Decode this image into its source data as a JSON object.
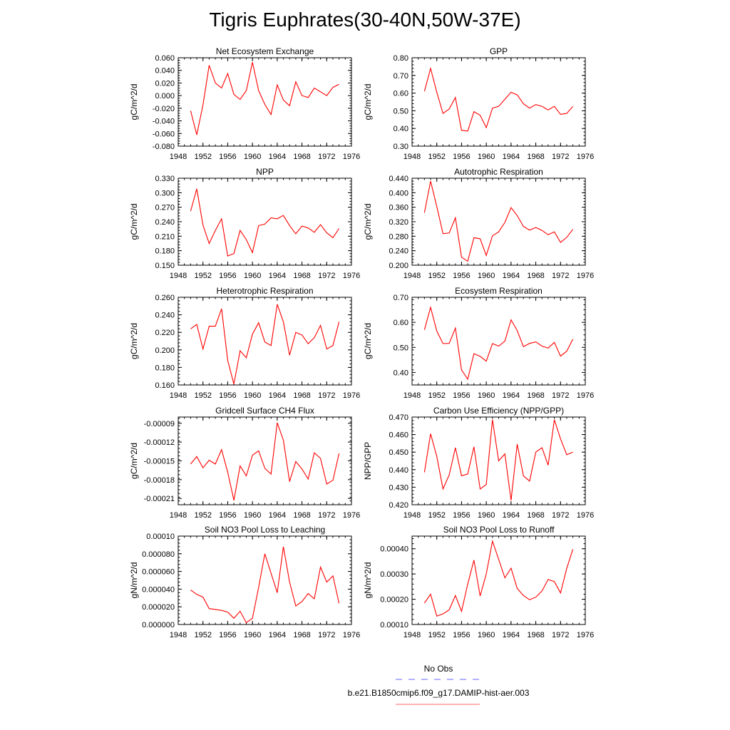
{
  "figure": {
    "title": "Tigris Euphrates(30-40N,50W-37E)",
    "line_color": "#ff0000",
    "obs_color": "#6666ff",
    "legend": [
      {
        "label": "No Obs",
        "color": "#6666ff",
        "style": "dashed"
      },
      {
        "label": "b.e21.B1850cmip6.f09_g17.DAMIP-hist-aer.003",
        "color": "#ff6666",
        "style": "solid"
      }
    ]
  },
  "chart_data": [
    {
      "type": "line",
      "title": "Net Ecosystem Exchange",
      "ylabel": "gC/m^2/d",
      "xlabel": "",
      "xlim": [
        1948,
        1976
      ],
      "xticks": [
        "1948",
        "1952",
        "1956",
        "1960",
        "1964",
        "1968",
        "1972",
        "1976"
      ],
      "ylim": [
        -0.08,
        0.06
      ],
      "yticks": [
        "-0.080",
        "-0.060",
        "-0.040",
        "-0.020",
        "0.000",
        "0.020",
        "0.040",
        "0.060"
      ],
      "x": [
        1950,
        1951,
        1952,
        1953,
        1954,
        1955,
        1956,
        1957,
        1958,
        1959,
        1960,
        1961,
        1962,
        1963,
        1964,
        1965,
        1966,
        1967,
        1968,
        1969,
        1970,
        1971,
        1972,
        1973,
        1974
      ],
      "values": [
        -0.024,
        -0.062,
        -0.015,
        0.048,
        0.02,
        0.012,
        0.035,
        0.002,
        -0.006,
        0.008,
        0.053,
        0.008,
        -0.014,
        -0.03,
        0.017,
        -0.007,
        -0.016,
        0.022,
        0.0,
        -0.003,
        0.012,
        0.006,
        0.0,
        0.013,
        0.018
      ]
    },
    {
      "type": "line",
      "title": "GPP",
      "ylabel": "gC/m^2/d",
      "xlabel": "",
      "xlim": [
        1948,
        1976
      ],
      "xticks": [
        "1948",
        "1952",
        "1956",
        "1960",
        "1964",
        "1968",
        "1972",
        "1976"
      ],
      "ylim": [
        0.3,
        0.8
      ],
      "yticks": [
        "0.30",
        "0.40",
        "0.50",
        "0.60",
        "0.70",
        "0.80"
      ],
      "x": [
        1950,
        1951,
        1952,
        1953,
        1954,
        1955,
        1956,
        1957,
        1958,
        1959,
        1960,
        1961,
        1962,
        1963,
        1964,
        1965,
        1966,
        1967,
        1968,
        1969,
        1970,
        1971,
        1972,
        1973,
        1974
      ],
      "values": [
        0.61,
        0.74,
        0.605,
        0.485,
        0.51,
        0.575,
        0.39,
        0.385,
        0.495,
        0.475,
        0.405,
        0.515,
        0.525,
        0.565,
        0.605,
        0.59,
        0.54,
        0.515,
        0.535,
        0.525,
        0.505,
        0.525,
        0.48,
        0.485,
        0.525
      ]
    },
    {
      "type": "line",
      "title": "NPP",
      "ylabel": "gC/m^2/d",
      "xlabel": "",
      "xlim": [
        1948,
        1976
      ],
      "xticks": [
        "1948",
        "1952",
        "1956",
        "1960",
        "1964",
        "1968",
        "1972",
        "1976"
      ],
      "ylim": [
        0.15,
        0.33
      ],
      "yticks": [
        "0.150",
        "0.180",
        "0.210",
        "0.240",
        "0.270",
        "0.300",
        "0.330"
      ],
      "x": [
        1950,
        1951,
        1952,
        1953,
        1954,
        1955,
        1956,
        1957,
        1958,
        1959,
        1960,
        1961,
        1962,
        1963,
        1964,
        1965,
        1966,
        1967,
        1968,
        1969,
        1970,
        1971,
        1972,
        1973,
        1974
      ],
      "values": [
        0.262,
        0.308,
        0.233,
        0.195,
        0.222,
        0.246,
        0.169,
        0.174,
        0.222,
        0.203,
        0.176,
        0.232,
        0.235,
        0.248,
        0.246,
        0.253,
        0.232,
        0.215,
        0.231,
        0.227,
        0.218,
        0.234,
        0.217,
        0.207,
        0.226
      ]
    },
    {
      "type": "line",
      "title": "Autotrophic Respiration",
      "ylabel": "gC/m^2/d",
      "xlabel": "",
      "xlim": [
        1948,
        1976
      ],
      "xticks": [
        "1948",
        "1952",
        "1956",
        "1960",
        "1964",
        "1968",
        "1972",
        "1976"
      ],
      "ylim": [
        0.2,
        0.44
      ],
      "yticks": [
        "0.200",
        "0.240",
        "0.280",
        "0.320",
        "0.360",
        "0.400",
        "0.440"
      ],
      "x": [
        1950,
        1951,
        1952,
        1953,
        1954,
        1955,
        1956,
        1957,
        1958,
        1959,
        1960,
        1961,
        1962,
        1963,
        1964,
        1965,
        1966,
        1967,
        1968,
        1969,
        1970,
        1971,
        1972,
        1973,
        1974
      ],
      "values": [
        0.345,
        0.432,
        0.362,
        0.287,
        0.289,
        0.331,
        0.222,
        0.211,
        0.276,
        0.273,
        0.227,
        0.281,
        0.292,
        0.318,
        0.359,
        0.337,
        0.307,
        0.297,
        0.304,
        0.296,
        0.284,
        0.292,
        0.263,
        0.277,
        0.299
      ]
    },
    {
      "type": "line",
      "title": "Heterotrophic Respiration",
      "ylabel": "gC/m^2/d",
      "xlabel": "",
      "xlim": [
        1948,
        1976
      ],
      "xticks": [
        "1948",
        "1952",
        "1956",
        "1960",
        "1964",
        "1968",
        "1972",
        "1976"
      ],
      "ylim": [
        0.16,
        0.26
      ],
      "yticks": [
        "0.160",
        "0.180",
        "0.200",
        "0.220",
        "0.240",
        "0.260"
      ],
      "x": [
        1950,
        1951,
        1952,
        1953,
        1954,
        1955,
        1956,
        1957,
        1958,
        1959,
        1960,
        1961,
        1962,
        1963,
        1964,
        1965,
        1966,
        1967,
        1968,
        1969,
        1970,
        1971,
        1972,
        1973,
        1974
      ],
      "values": [
        0.224,
        0.229,
        0.201,
        0.227,
        0.227,
        0.247,
        0.188,
        0.161,
        0.199,
        0.191,
        0.218,
        0.231,
        0.209,
        0.205,
        0.252,
        0.232,
        0.194,
        0.22,
        0.217,
        0.207,
        0.214,
        0.228,
        0.201,
        0.205,
        0.232
      ]
    },
    {
      "type": "line",
      "title": "Ecosystem Respiration",
      "ylabel": "gC/m^2/d",
      "xlabel": "",
      "xlim": [
        1948,
        1976
      ],
      "xticks": [
        "1948",
        "1952",
        "1956",
        "1960",
        "1964",
        "1968",
        "1972",
        "1976"
      ],
      "ylim": [
        0.35,
        0.7
      ],
      "yticks": [
        "0.40",
        "0.50",
        "0.60",
        "0.70"
      ],
      "x": [
        1950,
        1951,
        1952,
        1953,
        1954,
        1955,
        1956,
        1957,
        1958,
        1959,
        1960,
        1961,
        1962,
        1963,
        1964,
        1965,
        1966,
        1967,
        1968,
        1969,
        1970,
        1971,
        1972,
        1973,
        1974
      ],
      "values": [
        0.57,
        0.66,
        0.565,
        0.515,
        0.516,
        0.577,
        0.41,
        0.373,
        0.475,
        0.464,
        0.445,
        0.515,
        0.505,
        0.525,
        0.61,
        0.567,
        0.503,
        0.516,
        0.522,
        0.505,
        0.497,
        0.52,
        0.465,
        0.485,
        0.533
      ]
    },
    {
      "type": "line",
      "title": "Gridcell Surface CH4 Flux",
      "ylabel": "gC/m^2/d",
      "xlabel": "",
      "xlim": [
        1948,
        1976
      ],
      "xticks": [
        "1948",
        "1952",
        "1956",
        "1960",
        "1964",
        "1968",
        "1972",
        "1976"
      ],
      "ylim": [
        -0.00022,
        -8e-05
      ],
      "yticks": [
        "-0.00021",
        "-0.00018",
        "-0.00015",
        "-0.00012",
        "-0.00009"
      ],
      "x": [
        1950,
        1951,
        1952,
        1953,
        1954,
        1955,
        1956,
        1957,
        1958,
        1959,
        1960,
        1961,
        1962,
        1963,
        1964,
        1965,
        1966,
        1967,
        1968,
        1969,
        1970,
        1971,
        1972,
        1973,
        1974
      ],
      "values": [
        -0.000155,
        -0.000143,
        -0.000161,
        -0.000149,
        -0.000155,
        -0.000132,
        -0.000168,
        -0.000213,
        -0.000158,
        -0.000174,
        -0.000141,
        -0.000134,
        -0.000162,
        -0.000171,
        -8.9e-05,
        -0.000117,
        -0.000183,
        -0.000151,
        -0.000163,
        -0.000179,
        -0.000137,
        -0.000146,
        -0.000187,
        -0.000181,
        -0.000138
      ]
    },
    {
      "type": "line",
      "title": "Carbon Use Efficiency (NPP/GPP)",
      "ylabel": "NPP/GPP",
      "xlabel": "",
      "xlim": [
        1948,
        1976
      ],
      "xticks": [
        "1948",
        "1952",
        "1956",
        "1960",
        "1964",
        "1968",
        "1972",
        "1976"
      ],
      "ylim": [
        0.42,
        0.47
      ],
      "yticks": [
        "0.420",
        "0.430",
        "0.440",
        "0.450",
        "0.460",
        "0.470"
      ],
      "x": [
        1950,
        1951,
        1952,
        1953,
        1954,
        1955,
        1956,
        1957,
        1958,
        1959,
        1960,
        1961,
        1962,
        1963,
        1964,
        1965,
        1966,
        1967,
        1968,
        1969,
        1970,
        1971,
        1972,
        1973,
        1974
      ],
      "values": [
        0.4385,
        0.4605,
        0.4475,
        0.429,
        0.437,
        0.4525,
        0.4365,
        0.4375,
        0.453,
        0.429,
        0.4315,
        0.4685,
        0.445,
        0.449,
        0.4225,
        0.4545,
        0.4365,
        0.4335,
        0.45,
        0.4525,
        0.4425,
        0.4685,
        0.4575,
        0.4485,
        0.45
      ]
    },
    {
      "type": "line",
      "title": "Soil NO3 Pool Loss to Leaching",
      "ylabel": "gN/m^2/d",
      "xlabel": "",
      "xlim": [
        1948,
        1976
      ],
      "xticks": [
        "1948",
        "1952",
        "1956",
        "1960",
        "1964",
        "1968",
        "1972",
        "1976"
      ],
      "ylim": [
        0.0,
        0.0001
      ],
      "yticks": [
        "0.000000",
        "0.000020",
        "0.000040",
        "0.000060",
        "0.000080",
        "0.00010"
      ],
      "x": [
        1950,
        1951,
        1952,
        1953,
        1954,
        1955,
        1956,
        1957,
        1958,
        1959,
        1960,
        1961,
        1962,
        1963,
        1964,
        1965,
        1966,
        1967,
        1968,
        1969,
        1970,
        1971,
        1972,
        1973,
        1974
      ],
      "values": [
        3.9e-05,
        3.4e-05,
        3.1e-05,
        1.8e-05,
        1.7e-05,
        1.6e-05,
        1.4e-05,
        7e-06,
        1.5e-05,
        2e-06,
        7e-06,
        4.2e-05,
        8e-05,
        5.8e-05,
        3.6e-05,
        8.8e-05,
        4.8e-05,
        2.1e-05,
        2.6e-05,
        3.5e-05,
        2.9e-05,
        6.5e-05,
        4.8e-05,
        5.5e-05,
        2.4e-05
      ]
    },
    {
      "type": "line",
      "title": "Soil NO3 Pool Loss to Runoff",
      "ylabel": "gN/m^2/d",
      "xlabel": "",
      "xlim": [
        1948,
        1976
      ],
      "xticks": [
        "1948",
        "1952",
        "1956",
        "1960",
        "1964",
        "1968",
        "1972",
        "1976"
      ],
      "ylim": [
        0.0001,
        0.00045
      ],
      "yticks": [
        "0.00010",
        "0.00020",
        "0.00030",
        "0.00040"
      ],
      "x": [
        1950,
        1951,
        1952,
        1953,
        1954,
        1955,
        1956,
        1957,
        1958,
        1959,
        1960,
        1961,
        1962,
        1963,
        1964,
        1965,
        1966,
        1967,
        1968,
        1969,
        1970,
        1971,
        1972,
        1973,
        1974
      ],
      "values": [
        0.000185,
        0.00022,
        0.000133,
        0.000142,
        0.000158,
        0.000215,
        0.000152,
        0.00026,
        0.000355,
        0.000213,
        0.0003,
        0.00043,
        0.000358,
        0.000285,
        0.000323,
        0.000243,
        0.000215,
        0.000198,
        0.000208,
        0.000233,
        0.000278,
        0.00027,
        0.000225,
        0.000322,
        0.000398
      ]
    }
  ]
}
